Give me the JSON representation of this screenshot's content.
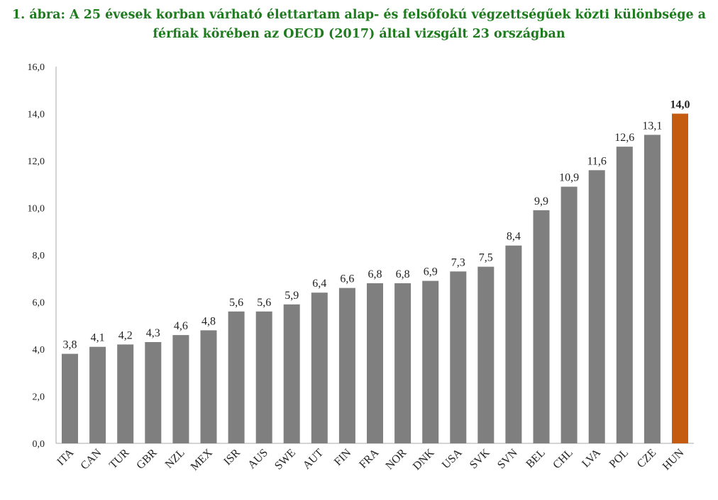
{
  "chart_data": {
    "type": "bar",
    "title_line1": "1. ábra: A 25 évesek korban várható élettartam alap- és felsőfokú végzettségűek közti különbsége a",
    "title_line2": "férfiak körében az OECD (2017) által vizsgált 23 országban",
    "categories": [
      "ITA",
      "CAN",
      "TUR",
      "GBR",
      "NZL",
      "MEX",
      "ISR",
      "AUS",
      "SWE",
      "AUT",
      "FIN",
      "FRA",
      "NOR",
      "DNK",
      "USA",
      "SVK",
      "SVN",
      "BEL",
      "CHL",
      "LVA",
      "POL",
      "CZE",
      "HUN"
    ],
    "values": [
      3.8,
      4.1,
      4.2,
      4.3,
      4.6,
      4.8,
      5.6,
      5.6,
      5.9,
      6.4,
      6.6,
      6.8,
      6.8,
      6.9,
      7.3,
      7.5,
      8.4,
      9.9,
      10.9,
      11.6,
      12.6,
      13.1,
      14.0
    ],
    "value_labels": [
      "3,8",
      "4,1",
      "4,2",
      "4,3",
      "4,6",
      "4,8",
      "5,6",
      "5,6",
      "5,9",
      "6,4",
      "6,6",
      "6,8",
      "6,8",
      "6,9",
      "7,3",
      "7,5",
      "8,4",
      "9,9",
      "10,9",
      "11,6",
      "12,6",
      "13,1",
      "14,0"
    ],
    "yticks": [
      "0,0",
      "2,0",
      "4,0",
      "6,0",
      "8,0",
      "10,0",
      "12,0",
      "14,0",
      "16,0"
    ],
    "ylim": [
      0,
      16
    ],
    "highlight_category": "HUN",
    "colors": {
      "bar": "#7f7f7f",
      "highlight": "#c55a11",
      "title": "#1e7b1e",
      "axis": "#aaaaaa"
    },
    "grid": false,
    "legend": "none"
  }
}
